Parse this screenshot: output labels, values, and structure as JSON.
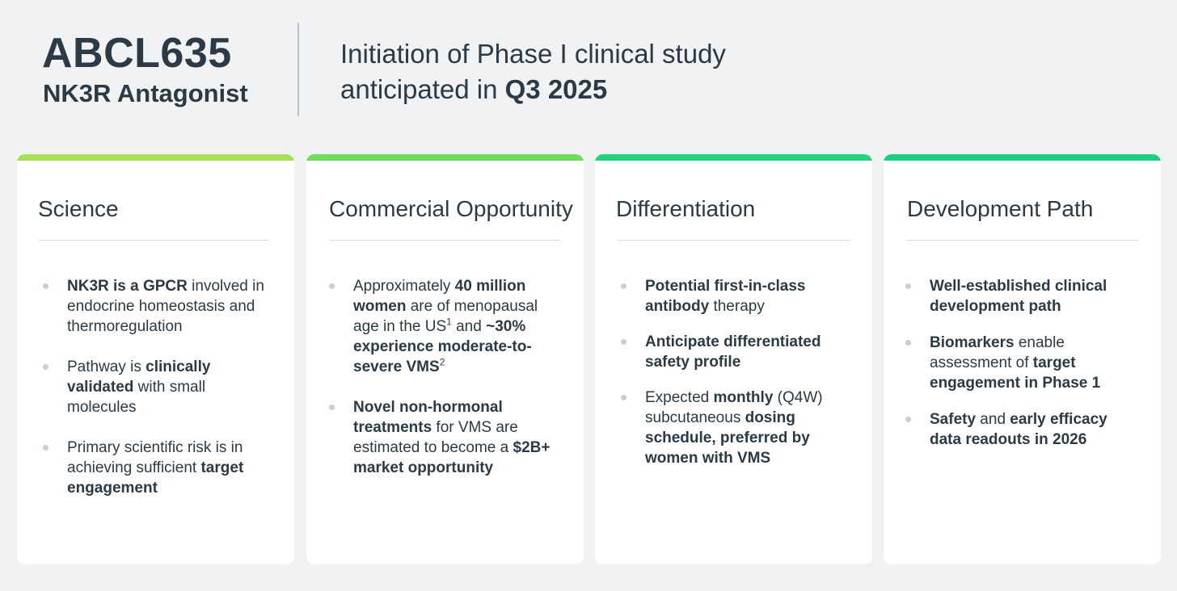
{
  "header": {
    "product_code": "ABCL635",
    "product_subtitle": "NK3R Antagonist",
    "headline_line1": "Initiation of Phase I clinical study",
    "headline_line2_prefix": "anticipated in ",
    "headline_line2_bold": "Q3 2025"
  },
  "colors": {
    "background": "#f0f2f4",
    "text": "#2b3a45",
    "science_bar": "#a6e05a",
    "commercial_bar": "#6fdd5c",
    "differentiation_bar": "#22d37a",
    "development_bar": "#1ccf80"
  },
  "cards": [
    {
      "title": "Science",
      "bullets": [
        [
          {
            "t": "NK3R is a GPCR",
            "b": true
          },
          {
            "t": " involved in endocrine homeostasis and thermoregulation"
          }
        ],
        [
          {
            "t": "Pathway is "
          },
          {
            "t": "clinically validated",
            "b": true
          },
          {
            "t": " with small molecules"
          }
        ],
        [
          {
            "t": "Primary scientific risk is in achieving sufficient "
          },
          {
            "t": "target engagement",
            "b": true
          }
        ]
      ]
    },
    {
      "title": "Commercial Opportunity",
      "bullets": [
        [
          {
            "t": "Approximately "
          },
          {
            "t": "40 million women",
            "b": true
          },
          {
            "t": " are of menopausal age in the US"
          },
          {
            "t": "1",
            "sup": true
          },
          {
            "t": " and "
          },
          {
            "t": "~30% experience moderate-to-severe VMS",
            "b": true
          },
          {
            "t": "2",
            "sup": true
          }
        ],
        [
          {
            "t": "Novel non-hormonal treatments",
            "b": true
          },
          {
            "t": " for VMS are estimated to become a "
          },
          {
            "t": "$2B+ market opportunity",
            "b": true
          }
        ]
      ]
    },
    {
      "title": "Differentiation",
      "bullets": [
        [
          {
            "t": "Potential first-in-class antibody",
            "b": true
          },
          {
            "t": " therapy"
          }
        ],
        [
          {
            "t": "Anticipate differentiated safety profile",
            "b": true
          }
        ],
        [
          {
            "t": "Expected "
          },
          {
            "t": "monthly",
            "b": true
          },
          {
            "t": " (Q4W) subcutaneous "
          },
          {
            "t": "dosing schedule, preferred by women with VMS",
            "b": true
          }
        ]
      ]
    },
    {
      "title": "Development Path",
      "bullets": [
        [
          {
            "t": "Well-established clinical development path",
            "b": true
          }
        ],
        [
          {
            "t": "Biomarkers",
            "b": true
          },
          {
            "t": " enable assessment of "
          },
          {
            "t": "target engagement in Phase 1",
            "b": true
          }
        ],
        [
          {
            "t": "Safety",
            "b": true
          },
          {
            "t": " and "
          },
          {
            "t": "early efficacy data readouts in 2026",
            "b": true
          }
        ]
      ]
    }
  ]
}
